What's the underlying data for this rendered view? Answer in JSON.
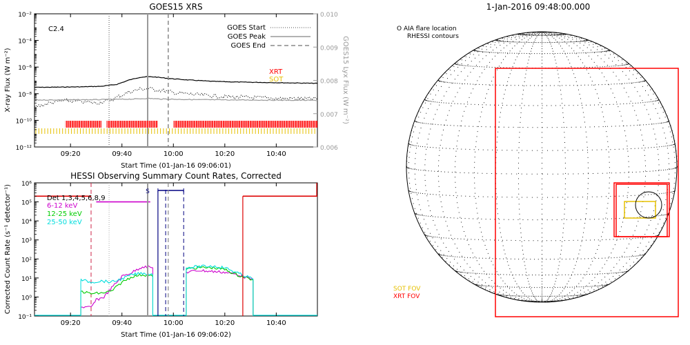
{
  "chart_data": [
    {
      "type": "line",
      "title": "GOES15 XRS",
      "xlabel": "Start Time (01-Jan-16 09:06:01)",
      "ylabel": "X-ray Flux (W m⁻²)",
      "y2label": "GOES15 Lyx Flux (W m⁻²)",
      "yscale": "log",
      "ylim": [
        1e-12,
        0.01
      ],
      "y2lim": [
        0.006,
        0.01
      ],
      "xlim": [
        "09:06",
        "10:56"
      ],
      "xticks": [
        "09:20",
        "09:40",
        "10:00",
        "10:20",
        "10:40"
      ],
      "yticks": [
        "10⁻¹²",
        "10⁻¹⁰",
        "10⁻⁸",
        "10⁻⁶",
        "10⁻⁴",
        "10⁻²"
      ],
      "y2ticks": [
        "0.006",
        "0.007",
        "0.008",
        "0.009",
        "0.010"
      ],
      "flare_class": "C2.4",
      "legend": [
        {
          "name": "GOES Start",
          "style": "dotted",
          "time": "09:35"
        },
        {
          "name": "GOES Peak",
          "style": "solid",
          "time": "09:50"
        },
        {
          "name": "GOES End",
          "style": "dashed",
          "time": "09:58"
        }
      ],
      "obs_labels": [
        {
          "name": "XRT",
          "color": "#ff0000"
        },
        {
          "name": "SOT",
          "color": "#e6c000"
        }
      ],
      "series": [
        {
          "name": "long",
          "color": "#000000",
          "style": "solid",
          "x": [
            "09:06",
            "09:15",
            "09:25",
            "09:32",
            "09:38",
            "09:43",
            "09:47",
            "09:50",
            "09:53",
            "09:58",
            "10:05",
            "10:15",
            "10:25",
            "10:35",
            "10:45",
            "10:56"
          ],
          "y": [
            3e-08,
            3.1e-08,
            3.3e-08,
            3.6e-08,
            5e-08,
            1.1e-07,
            1.7e-07,
            1.9e-07,
            1.8e-07,
            1.4e-07,
            1.1e-07,
            8.5e-08,
            7.5e-08,
            7e-08,
            6.5e-08,
            6e-08
          ]
        },
        {
          "name": "short",
          "color": "#000000",
          "style": "dotted",
          "x": [
            "09:06",
            "09:12",
            "09:18",
            "09:24",
            "09:30",
            "09:36",
            "09:42",
            "09:47",
            "09:50",
            "09:55",
            "10:00",
            "10:10",
            "10:20",
            "10:30",
            "10:40",
            "10:56"
          ],
          "y": [
            1e-09,
            2e-09,
            3e-09,
            2.5e-09,
            2e-09,
            3.5e-09,
            1.2e-08,
            2.2e-08,
            2.4e-08,
            1.8e-08,
            1.2e-08,
            8e-09,
            6e-09,
            5e-09,
            4.5e-09,
            4e-09
          ]
        },
        {
          "name": "lyx",
          "color": "#999999",
          "style": "solid",
          "axis": "y2",
          "x": [
            "09:06",
            "09:30",
            "09:45",
            "09:50",
            "09:55",
            "10:10",
            "10:30",
            "10:56"
          ],
          "y": [
            0.00741,
            0.00742,
            0.00744,
            0.00746,
            0.00744,
            0.00742,
            0.00741,
            0.0074
          ]
        }
      ]
    },
    {
      "type": "line",
      "title": "HESSI Observing Summary Count Rates, Corrected",
      "xlabel": "Start Time (01-Jan-16 09:06:02)",
      "ylabel": "Corrected Count Rate (s⁻¹ detector⁻¹)",
      "yscale": "log",
      "ylim": [
        0.1,
        1000000
      ],
      "xlim": [
        "09:06",
        "10:56"
      ],
      "xticks": [
        "09:20",
        "09:40",
        "10:00",
        "10:20",
        "10:40"
      ],
      "yticks": [
        "10⁻¹",
        "10⁰",
        "10¹",
        "10²",
        "10³",
        "10⁴",
        "10⁵",
        "10⁶"
      ],
      "detector_label": "Det 1,3,4,5,6,8,9",
      "saa_label": "S",
      "legend": [
        {
          "name": "6-12 keV",
          "color": "#cc00cc"
        },
        {
          "name": "12-25 keV",
          "color": "#00cc00"
        },
        {
          "name": "25-50 keV",
          "color": "#00dddd"
        }
      ],
      "series": [
        {
          "name": "6-12 keV",
          "color": "#cc00cc",
          "x": [
            "09:24",
            "09:28",
            "09:30",
            "09:33",
            "09:36",
            "09:40",
            "09:44",
            "09:48",
            "09:52",
            "10:05",
            "10:10",
            "10:15",
            "10:20",
            "10:25",
            "10:31"
          ],
          "y": [
            0.3,
            0.28,
            0.7,
            1.0,
            3.0,
            12,
            20,
            40,
            35,
            20,
            25,
            22,
            20,
            15,
            8
          ]
        },
        {
          "name": "12-25 keV",
          "color": "#00cc00",
          "x": [
            "09:24",
            "09:28",
            "09:32",
            "09:36",
            "09:40",
            "09:44",
            "09:48",
            "09:52",
            "10:05",
            "10:10",
            "10:15",
            "10:20",
            "10:25",
            "10:31"
          ],
          "y": [
            2,
            1.5,
            1.6,
            2.0,
            6,
            12,
            15,
            12,
            30,
            35,
            35,
            28,
            14,
            8
          ]
        },
        {
          "name": "25-50 keV",
          "color": "#00dddd",
          "x": [
            "09:24",
            "09:28",
            "09:32",
            "09:36",
            "09:40",
            "09:44",
            "09:48",
            "09:52",
            "10:05",
            "10:10",
            "10:15",
            "10:20",
            "10:25",
            "10:31"
          ],
          "y": [
            8,
            6,
            7,
            6,
            9,
            15,
            18,
            15,
            35,
            40,
            42,
            35,
            18,
            9
          ]
        }
      ]
    },
    {
      "type": "diagram",
      "title": "1-Jan-2016 09:48:00.000",
      "annotation_lines": [
        "O AIA flare location",
        "RHESSI contours"
      ],
      "fov_labels": [
        {
          "name": "SOT FOV",
          "color": "#e6c000"
        },
        {
          "name": "XRT FOV",
          "color": "#ff0000"
        }
      ]
    }
  ]
}
